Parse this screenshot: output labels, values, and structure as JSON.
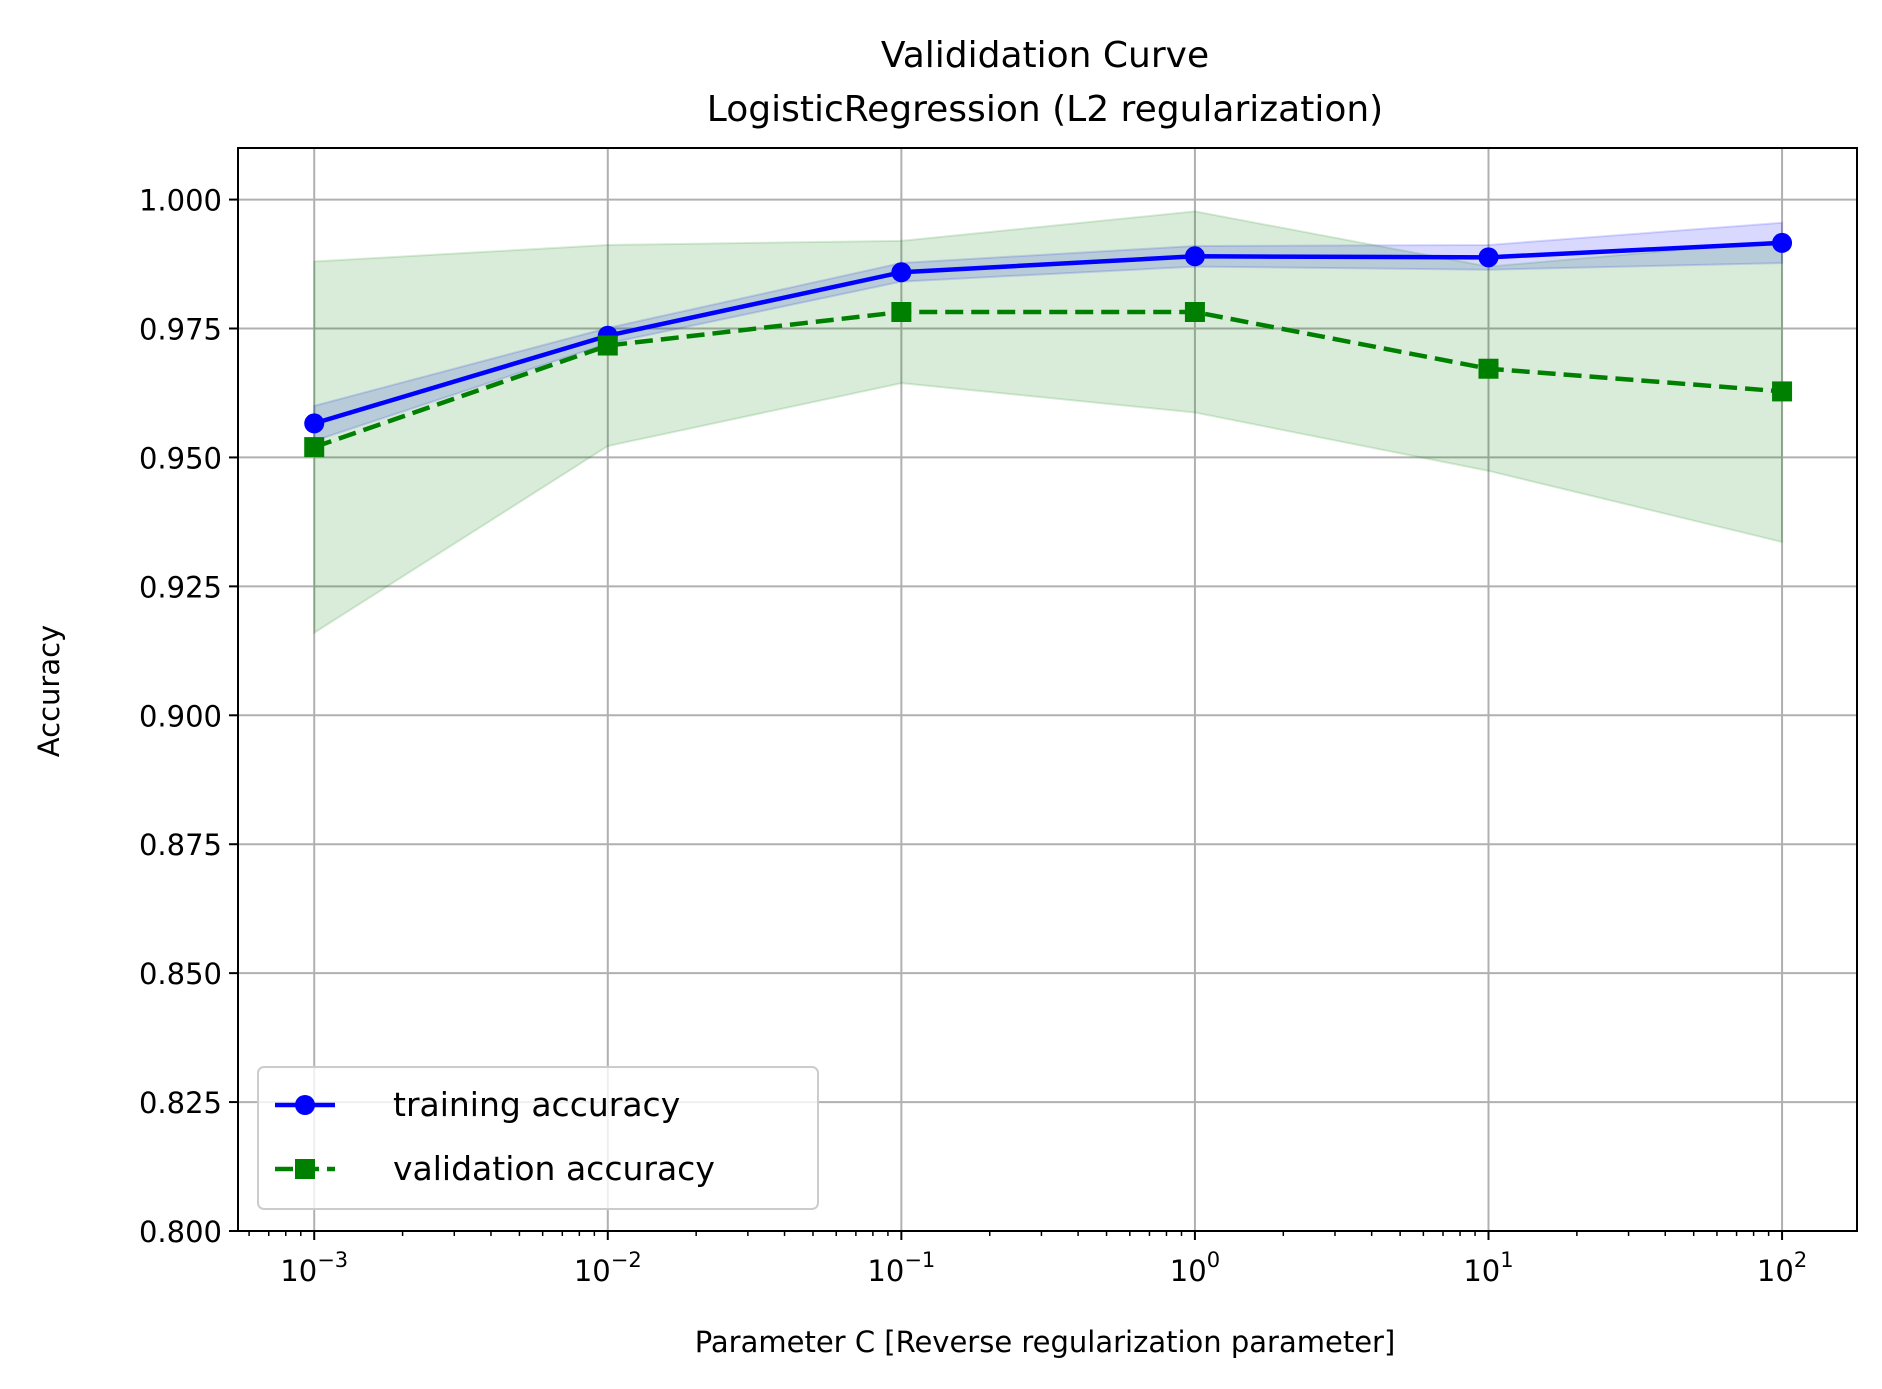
{
  "chart_data": {
    "type": "line",
    "title": "Valididation Curve",
    "subtitle": "LogisticRegression (L2 regularization)",
    "xlabel": "Parameter C [Reverse regularization parameter]",
    "ylabel": "Accuracy",
    "xscale": "log",
    "x": [
      0.001,
      0.01,
      0.1,
      1,
      10,
      100
    ],
    "xticks": [
      {
        "value": 0.001,
        "base": "10",
        "exp": "−3"
      },
      {
        "value": 0.01,
        "base": "10",
        "exp": "−2"
      },
      {
        "value": 0.1,
        "base": "10",
        "exp": "−1"
      },
      {
        "value": 1,
        "base": "10",
        "exp": "0"
      },
      {
        "value": 10,
        "base": "10",
        "exp": "1"
      },
      {
        "value": 100,
        "base": "10",
        "exp": "2"
      }
    ],
    "xlim": [
      0.00055,
      180
    ],
    "ylim": [
      0.8,
      1.01
    ],
    "yticks": [
      {
        "value": 0.8,
        "label": "0.800"
      },
      {
        "value": 0.825,
        "label": "0.825"
      },
      {
        "value": 0.85,
        "label": "0.850"
      },
      {
        "value": 0.875,
        "label": "0.875"
      },
      {
        "value": 0.9,
        "label": "0.900"
      },
      {
        "value": 0.925,
        "label": "0.925"
      },
      {
        "value": 0.95,
        "label": "0.950"
      },
      {
        "value": 0.975,
        "label": "0.975"
      },
      {
        "value": 1.0,
        "label": "1.000"
      }
    ],
    "grid": true,
    "legend_position": "lower-left",
    "series": [
      {
        "name": "training accuracy",
        "color": "#0000ff",
        "marker": "circle",
        "linestyle": "solid",
        "values": [
          0.9566,
          0.9736,
          0.9859,
          0.989,
          0.9888,
          0.9916
        ],
        "band_upper": [
          0.96,
          0.9751,
          0.9877,
          0.991,
          0.9912,
          0.9955
        ],
        "band_lower": [
          0.9532,
          0.9721,
          0.9841,
          0.987,
          0.9864,
          0.9877
        ],
        "band_color": "#0000ff"
      },
      {
        "name": "validation accuracy",
        "color": "#008000",
        "marker": "square",
        "linestyle": "dashed",
        "values": [
          0.952,
          0.9717,
          0.9782,
          0.9782,
          0.9672,
          0.9628
        ],
        "band_upper": [
          0.988,
          0.9912,
          0.992,
          0.9977,
          0.987,
          0.992
        ],
        "band_lower": [
          0.916,
          0.9522,
          0.9644,
          0.9587,
          0.9474,
          0.9336
        ],
        "band_color": "#008000"
      }
    ]
  }
}
